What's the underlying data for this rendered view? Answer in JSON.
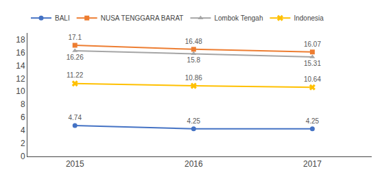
{
  "chart_data": {
    "type": "line",
    "x": [
      2015,
      2016,
      2017
    ],
    "series": [
      {
        "name": "BALI",
        "color": "#4472C4",
        "marker": "circle",
        "values": [
          4.74,
          4.25,
          4.25
        ]
      },
      {
        "name": "NUSA TENGGARA BARAT",
        "color": "#ED7D31",
        "marker": "square",
        "values": [
          17.1,
          16.48,
          16.07
        ]
      },
      {
        "name": "Lombok Tengah",
        "color": "#A5A5A5",
        "marker": "triangle-up",
        "values": [
          16.26,
          15.8,
          15.31
        ]
      },
      {
        "name": "Indonesia",
        "color": "#FFC000",
        "marker": "x",
        "values": [
          11.22,
          10.86,
          10.64
        ]
      }
    ],
    "xlim": [
      2014.6,
      2017.5
    ],
    "xticks": [
      2015,
      2016,
      2017
    ],
    "ylim": [
      0,
      19
    ],
    "yticks": [
      0,
      2,
      4,
      6,
      8,
      10,
      12,
      14,
      16,
      18
    ],
    "grid": false,
    "legend": "top",
    "data_labels": true
  }
}
